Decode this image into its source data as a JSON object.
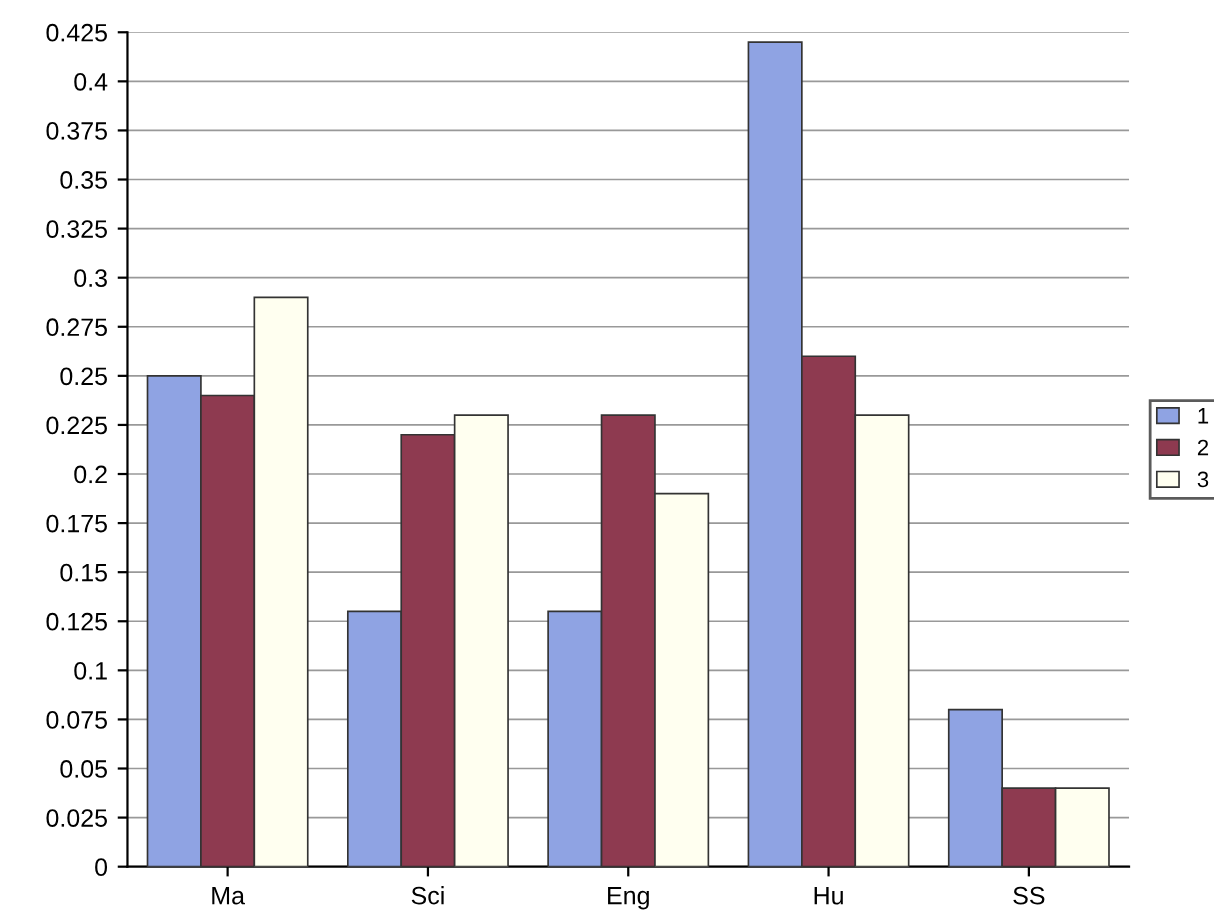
{
  "chart_data": {
    "type": "bar",
    "categories": [
      "Ma",
      "Sci",
      "Eng",
      "Hu",
      "SS"
    ],
    "series": [
      {
        "name": "1",
        "color": "#8fa3e3",
        "values": [
          0.25,
          0.13,
          0.13,
          0.42,
          0.08
        ]
      },
      {
        "name": "2",
        "color": "#8e3a50",
        "values": [
          0.24,
          0.22,
          0.23,
          0.26,
          0.04
        ]
      },
      {
        "name": "3",
        "color": "#fffff0",
        "values": [
          0.29,
          0.23,
          0.19,
          0.23,
          0.04
        ]
      }
    ],
    "ylim": [
      0,
      0.425
    ],
    "yticks": [
      0,
      0.025,
      0.05,
      0.075,
      0.1,
      0.125,
      0.15,
      0.175,
      0.2,
      0.225,
      0.25,
      0.275,
      0.3,
      0.325,
      0.35,
      0.375,
      0.4,
      0.425
    ],
    "grid": "y",
    "legend": "right"
  }
}
